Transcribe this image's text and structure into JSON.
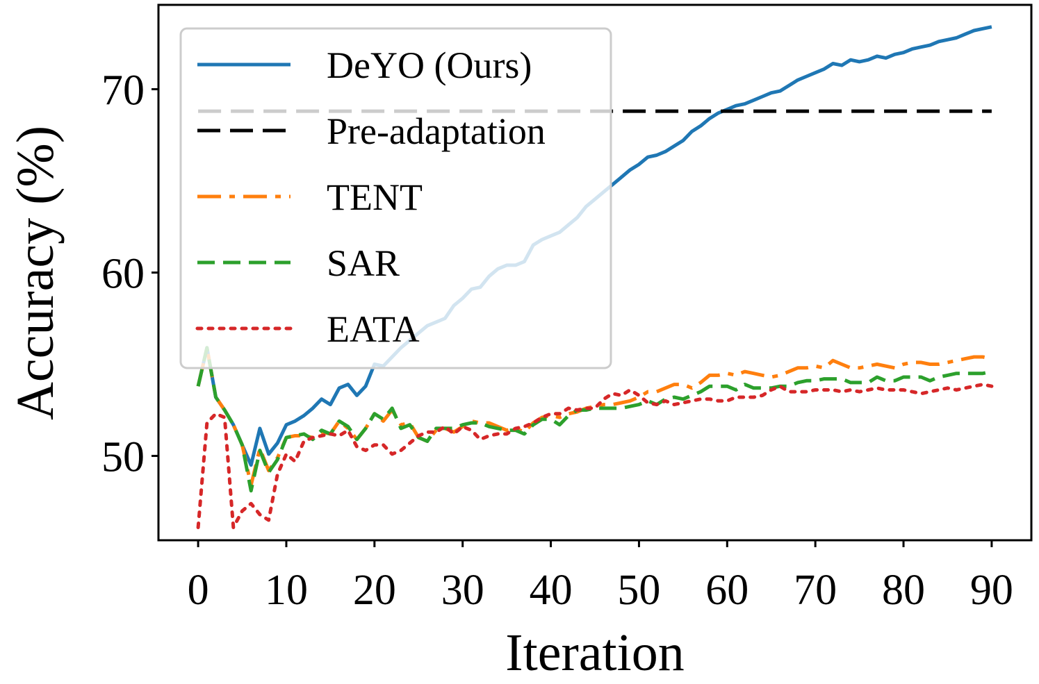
{
  "chart_data": {
    "type": "line",
    "title": "",
    "xlabel": "Iteration",
    "ylabel": "Accuracy (%)",
    "xlim": [
      -4.5,
      94.5
    ],
    "ylim": [
      45.4,
      74.6
    ],
    "grid": false,
    "legend_position": "top-left",
    "xticks": [
      0,
      10,
      20,
      30,
      40,
      50,
      60,
      70,
      80,
      90
    ],
    "xtick_labels": [
      "0",
      "10",
      "20",
      "30",
      "40",
      "50",
      "60",
      "70",
      "80",
      "90"
    ],
    "yticks": [
      50,
      60,
      70
    ],
    "ytick_labels": [
      "50",
      "60",
      "70"
    ],
    "x": [
      0,
      1,
      2,
      3,
      4,
      5,
      6,
      7,
      8,
      9,
      10,
      11,
      12,
      13,
      14,
      15,
      16,
      17,
      18,
      19,
      20,
      21,
      22,
      23,
      24,
      25,
      26,
      27,
      28,
      29,
      30,
      31,
      32,
      33,
      34,
      35,
      36,
      37,
      38,
      39,
      40,
      41,
      42,
      43,
      44,
      45,
      46,
      47,
      48,
      49,
      50,
      51,
      52,
      53,
      54,
      55,
      56,
      57,
      58,
      59,
      60,
      61,
      62,
      63,
      64,
      65,
      66,
      67,
      68,
      69,
      70,
      71,
      72,
      73,
      74,
      75,
      76,
      77,
      78,
      79,
      80,
      81,
      82,
      83,
      84,
      85,
      86,
      87,
      88,
      89,
      90
    ],
    "series": [
      {
        "name": "DeYO (Ours)",
        "color": "#1f77b4",
        "style": "solid",
        "values": [
          53.8,
          55.9,
          53.2,
          52.5,
          51.7,
          50.6,
          49.5,
          51.5,
          50.1,
          50.7,
          51.7,
          51.9,
          52.2,
          52.6,
          53.1,
          52.8,
          53.7,
          53.9,
          53.3,
          53.8,
          55.0,
          54.9,
          55.4,
          55.9,
          56.3,
          56.7,
          57.1,
          57.3,
          57.5,
          58.2,
          58.6,
          59.1,
          59.2,
          59.8,
          60.2,
          60.4,
          60.4,
          60.6,
          61.5,
          61.8,
          62.0,
          62.2,
          62.6,
          63.0,
          63.6,
          64.0,
          64.4,
          64.8,
          65.2,
          65.6,
          65.9,
          66.3,
          66.4,
          66.6,
          66.9,
          67.2,
          67.7,
          68.0,
          68.4,
          68.7,
          68.9,
          69.1,
          69.2,
          69.4,
          69.6,
          69.8,
          69.9,
          70.2,
          70.5,
          70.7,
          70.9,
          71.1,
          71.4,
          71.3,
          71.6,
          71.5,
          71.6,
          71.8,
          71.7,
          71.9,
          72.0,
          72.2,
          72.3,
          72.4,
          72.6,
          72.7,
          72.8,
          73.0,
          73.2,
          73.3,
          73.4
        ]
      },
      {
        "name": "Pre-adaptation",
        "color": "#000000",
        "style": "longdash",
        "values": [
          68.8,
          68.8,
          68.8,
          68.8,
          68.8,
          68.8,
          68.8,
          68.8,
          68.8,
          68.8,
          68.8,
          68.8,
          68.8,
          68.8,
          68.8,
          68.8,
          68.8,
          68.8,
          68.8,
          68.8,
          68.8,
          68.8,
          68.8,
          68.8,
          68.8,
          68.8,
          68.8,
          68.8,
          68.8,
          68.8,
          68.8,
          68.8,
          68.8,
          68.8,
          68.8,
          68.8,
          68.8,
          68.8,
          68.8,
          68.8,
          68.8,
          68.8,
          68.8,
          68.8,
          68.8,
          68.8,
          68.8,
          68.8,
          68.8,
          68.8,
          68.8,
          68.8,
          68.8,
          68.8,
          68.8,
          68.8,
          68.8,
          68.8,
          68.8,
          68.8,
          68.8,
          68.8,
          68.8,
          68.8,
          68.8,
          68.8,
          68.8,
          68.8,
          68.8,
          68.8,
          68.8,
          68.8,
          68.8,
          68.8,
          68.8,
          68.8,
          68.8,
          68.8,
          68.8,
          68.8,
          68.8,
          68.8,
          68.8,
          68.8,
          68.8,
          68.8,
          68.8,
          68.8,
          68.8,
          68.8,
          68.8
        ]
      },
      {
        "name": "TENT",
        "color": "#ff7f0e",
        "style": "dashdot",
        "values": [
          53.8,
          55.9,
          53.2,
          52.5,
          51.7,
          50.6,
          48.4,
          50.4,
          49.2,
          49.9,
          51.0,
          51.1,
          51.1,
          51.0,
          51.3,
          51.2,
          51.9,
          51.5,
          50.9,
          51.5,
          52.3,
          51.9,
          52.5,
          51.7,
          51.8,
          51.0,
          50.8,
          51.4,
          51.5,
          51.3,
          51.6,
          51.9,
          51.8,
          51.8,
          51.6,
          51.4,
          51.5,
          51.3,
          51.8,
          52.1,
          52.2,
          52.1,
          52.3,
          52.4,
          52.6,
          52.7,
          52.8,
          52.8,
          52.9,
          53.0,
          53.2,
          53.5,
          53.5,
          53.7,
          53.9,
          53.9,
          53.7,
          54.0,
          54.4,
          54.4,
          54.5,
          54.4,
          54.6,
          54.5,
          54.4,
          54.3,
          54.4,
          54.6,
          54.8,
          54.8,
          54.9,
          54.8,
          55.2,
          55.0,
          54.8,
          54.8,
          54.9,
          55.0,
          54.9,
          54.8,
          55.0,
          55.1,
          55.1,
          55.0,
          55.0,
          55.1,
          55.2,
          55.3,
          55.4,
          55.4,
          55.3
        ]
      },
      {
        "name": "SAR",
        "color": "#2ca02c",
        "style": "dashed",
        "values": [
          53.8,
          55.9,
          53.2,
          52.5,
          51.7,
          50.6,
          48.1,
          50.3,
          49.1,
          49.8,
          51.0,
          51.1,
          51.2,
          50.9,
          51.4,
          51.2,
          51.9,
          51.6,
          50.9,
          51.5,
          52.3,
          52.0,
          52.6,
          51.5,
          51.7,
          51.0,
          50.8,
          51.5,
          51.5,
          51.5,
          51.7,
          51.8,
          51.8,
          51.6,
          51.5,
          51.4,
          51.4,
          51.2,
          51.7,
          52.0,
          52.0,
          51.7,
          52.2,
          52.5,
          52.5,
          52.6,
          52.6,
          52.6,
          52.6,
          52.7,
          52.8,
          53.0,
          52.8,
          53.1,
          53.2,
          53.1,
          53.3,
          53.5,
          53.8,
          53.8,
          53.8,
          53.6,
          53.9,
          53.7,
          53.7,
          53.7,
          53.8,
          53.8,
          54.0,
          54.1,
          54.1,
          54.2,
          54.2,
          54.2,
          54.0,
          54.0,
          54.0,
          54.3,
          54.1,
          54.1,
          54.3,
          54.3,
          54.3,
          54.1,
          54.3,
          54.4,
          54.5,
          54.5,
          54.5,
          54.5,
          54.6
        ]
      },
      {
        "name": "EATA",
        "color": "#d62728",
        "style": "dotted",
        "values": [
          46.1,
          51.8,
          52.3,
          52.1,
          46.1,
          47.0,
          47.4,
          46.8,
          46.5,
          49.0,
          50.1,
          49.7,
          50.8,
          51.0,
          51.1,
          51.2,
          51.1,
          51.4,
          50.5,
          50.3,
          50.6,
          50.6,
          50.1,
          50.3,
          50.7,
          51.1,
          51.3,
          51.3,
          51.6,
          51.2,
          51.6,
          51.4,
          50.9,
          51.1,
          51.2,
          51.2,
          51.5,
          51.6,
          51.8,
          52.1,
          52.3,
          52.3,
          52.6,
          52.5,
          52.6,
          52.6,
          53.1,
          53.4,
          53.3,
          53.6,
          53.3,
          52.9,
          52.8,
          53.0,
          52.8,
          52.9,
          53.0,
          53.1,
          53.1,
          53.0,
          53.0,
          53.2,
          53.2,
          53.2,
          53.3,
          53.6,
          53.8,
          53.5,
          53.5,
          53.5,
          53.6,
          53.6,
          53.6,
          53.5,
          53.6,
          53.5,
          53.6,
          53.7,
          53.6,
          53.6,
          53.6,
          53.5,
          53.4,
          53.5,
          53.6,
          53.7,
          53.6,
          53.7,
          53.8,
          53.9,
          53.8
        ]
      }
    ]
  }
}
